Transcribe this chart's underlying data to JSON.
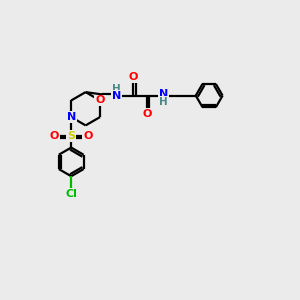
{
  "background_color": "#ebebeb",
  "bond_color": "#000000",
  "atom_colors": {
    "C": "#000000",
    "N": "#0000ff",
    "O": "#ff0000",
    "S": "#cccc00",
    "Cl": "#00bb00",
    "H": "#4a8888"
  },
  "lw": 1.6,
  "ring_r": 0.72,
  "ph_r": 0.58,
  "cl_ph_r": 0.62
}
